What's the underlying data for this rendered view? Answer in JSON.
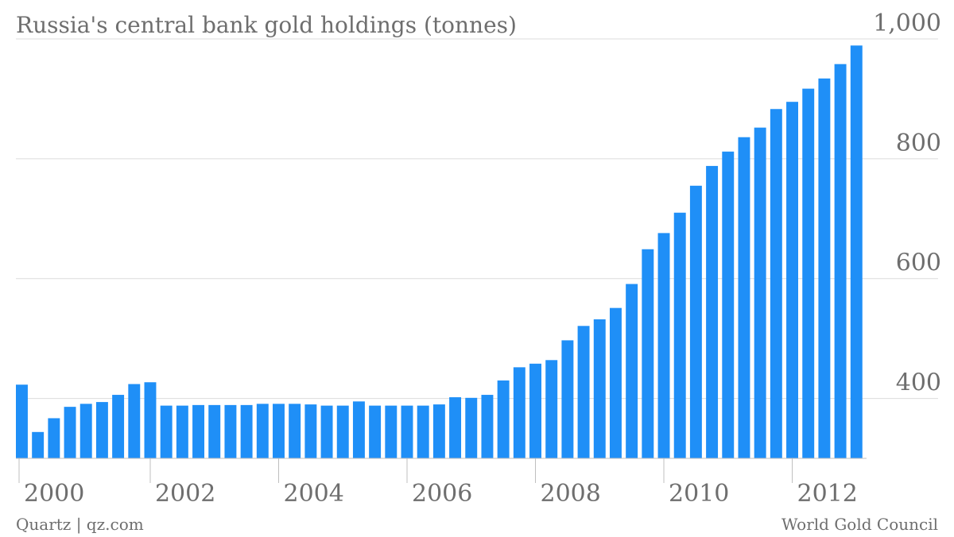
{
  "chart_data": {
    "type": "bar",
    "title": "Russia's central bank gold holdings (tonnes)",
    "xlabel": "",
    "ylabel": "",
    "source_left": "Quartz | qz.com",
    "source_right": "World Gold Council",
    "bar_color": "#1f8ff7",
    "grid": true,
    "y_axis_position": "right",
    "ylim": [
      300,
      1000
    ],
    "yticks": [
      400,
      600,
      800,
      1000
    ],
    "ytick_labels": [
      "400",
      "600",
      "800",
      "1,000"
    ],
    "xticks": [
      "2000",
      "2002",
      "2004",
      "2006",
      "2008",
      "2010",
      "2012"
    ],
    "categories": [
      "2000-Q1",
      "2000-Q2",
      "2000-Q3",
      "2000-Q4",
      "2001-Q1",
      "2001-Q2",
      "2001-Q3",
      "2001-Q4",
      "2002-Q1",
      "2002-Q2",
      "2002-Q3",
      "2002-Q4",
      "2003-Q1",
      "2003-Q2",
      "2003-Q3",
      "2003-Q4",
      "2004-Q1",
      "2004-Q2",
      "2004-Q3",
      "2004-Q4",
      "2005-Q1",
      "2005-Q2",
      "2005-Q3",
      "2005-Q4",
      "2006-Q1",
      "2006-Q2",
      "2006-Q3",
      "2006-Q4",
      "2007-Q1",
      "2007-Q2",
      "2007-Q3",
      "2007-Q4",
      "2008-Q1",
      "2008-Q2",
      "2008-Q3",
      "2008-Q4",
      "2009-Q1",
      "2009-Q2",
      "2009-Q3",
      "2009-Q4",
      "2010-Q1",
      "2010-Q2",
      "2010-Q3",
      "2010-Q4",
      "2011-Q1",
      "2011-Q2",
      "2011-Q3",
      "2011-Q4",
      "2012-Q1",
      "2012-Q2",
      "2012-Q3",
      "2012-Q4",
      "2013-Q1"
    ],
    "values": [
      423,
      344,
      367,
      386,
      391,
      394,
      406,
      424,
      427,
      388,
      388,
      389,
      389,
      389,
      389,
      391,
      391,
      391,
      390,
      388,
      388,
      395,
      388,
      388,
      388,
      388,
      390,
      402,
      401,
      406,
      430,
      452,
      458,
      464,
      497,
      521,
      532,
      551,
      591,
      649,
      676,
      710,
      755,
      788,
      812,
      836,
      852,
      883,
      895,
      917,
      934,
      958,
      989
    ]
  }
}
